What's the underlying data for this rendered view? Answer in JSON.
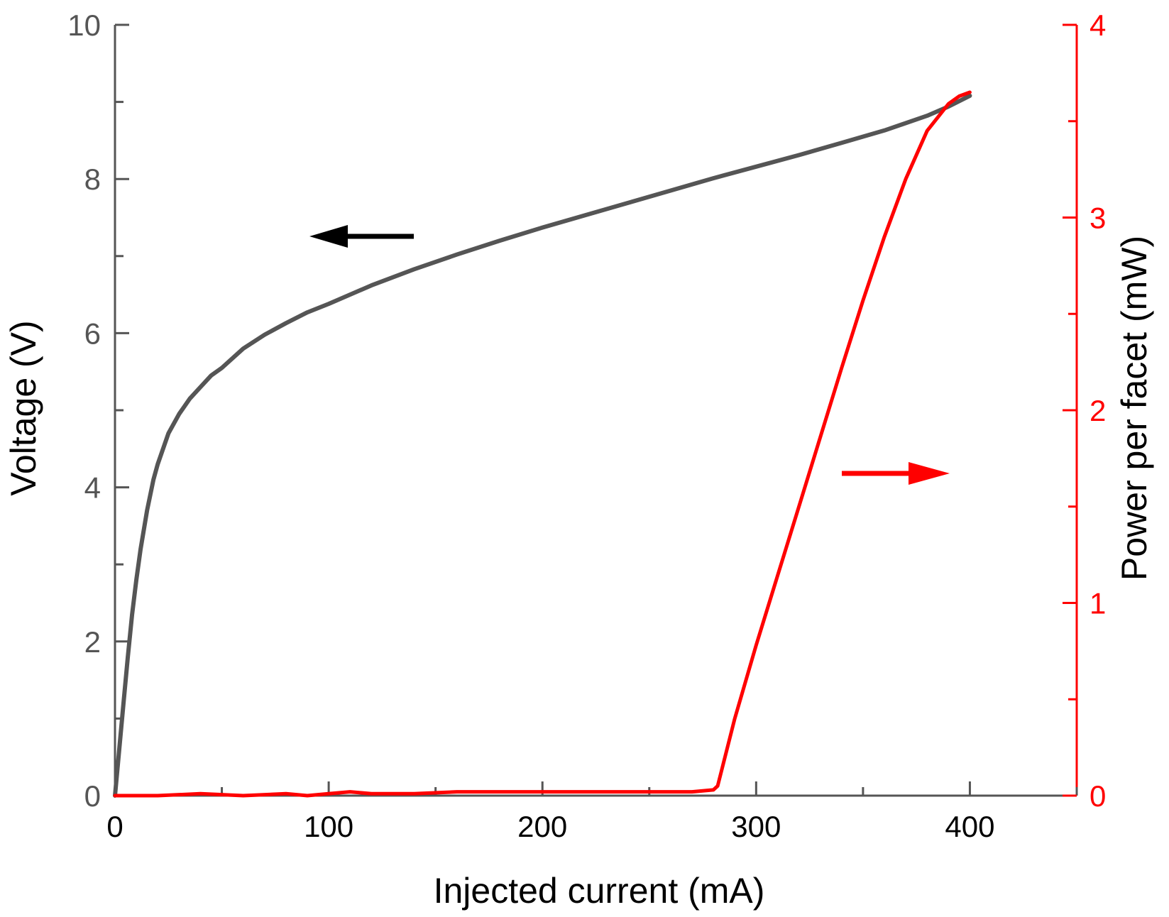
{
  "chart_data": {
    "type": "line",
    "title": "",
    "xlabel": "Injected current (mA)",
    "ylabel_left": "Voltage (V)",
    "ylabel_right": "Power per facet (mW)",
    "xlim": [
      0,
      450
    ],
    "ylim_left": [
      0,
      10
    ],
    "ylim_right": [
      0,
      4
    ],
    "x_ticks": [
      0,
      100,
      200,
      300,
      400
    ],
    "y_left_ticks": [
      0,
      2,
      4,
      6,
      8,
      10
    ],
    "y_right_ticks": [
      0,
      1,
      2,
      3,
      4
    ],
    "grid": false,
    "legend": "none",
    "annotations": [
      {
        "type": "arrow",
        "direction": "left",
        "points_to_axis": "left",
        "color": "#000000"
      },
      {
        "type": "arrow",
        "direction": "right",
        "points_to_axis": "right",
        "color": "#ff0000"
      }
    ],
    "series": [
      {
        "axis": "left",
        "color": "#555555",
        "x": [
          0,
          2,
          4,
          6,
          8,
          10,
          12,
          15,
          18,
          20,
          25,
          30,
          35,
          40,
          45,
          50,
          60,
          70,
          80,
          90,
          100,
          120,
          140,
          160,
          180,
          200,
          220,
          240,
          260,
          280,
          300,
          320,
          340,
          360,
          380,
          390,
          400
        ],
        "y": [
          0.0,
          0.6,
          1.2,
          1.8,
          2.35,
          2.8,
          3.2,
          3.7,
          4.1,
          4.3,
          4.7,
          4.95,
          5.15,
          5.3,
          5.45,
          5.55,
          5.8,
          5.98,
          6.13,
          6.27,
          6.38,
          6.62,
          6.83,
          7.02,
          7.2,
          7.37,
          7.53,
          7.69,
          7.85,
          8.01,
          8.16,
          8.31,
          8.47,
          8.63,
          8.82,
          8.94,
          9.08
        ]
      },
      {
        "axis": "right",
        "color": "#ff0000",
        "x": [
          0,
          20,
          40,
          60,
          80,
          90,
          100,
          110,
          120,
          140,
          160,
          180,
          200,
          220,
          240,
          260,
          270,
          280,
          282,
          290,
          300,
          310,
          320,
          330,
          340,
          350,
          360,
          370,
          380,
          390,
          395,
          400
        ],
        "y": [
          0.0,
          0.0,
          0.01,
          0.0,
          0.01,
          0.0,
          0.01,
          0.02,
          0.01,
          0.01,
          0.02,
          0.02,
          0.02,
          0.02,
          0.02,
          0.02,
          0.02,
          0.03,
          0.05,
          0.4,
          0.78,
          1.14,
          1.5,
          1.86,
          2.22,
          2.57,
          2.9,
          3.2,
          3.45,
          3.59,
          3.63,
          3.65
        ]
      }
    ]
  }
}
